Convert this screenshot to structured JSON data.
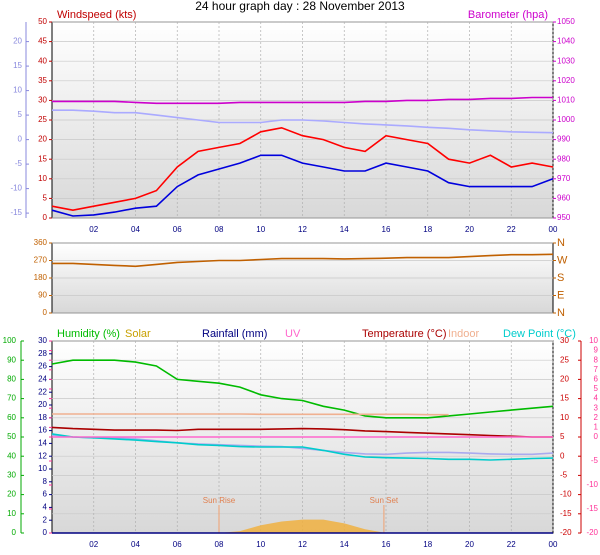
{
  "title": "24 hour graph day : 28 November 2013",
  "chart_data": [
    {
      "type": "line",
      "y_label": "Windspeed (kts)",
      "y2_label": "Barometer (hpa)",
      "x": [
        0,
        1,
        2,
        3,
        4,
        5,
        6,
        7,
        8,
        9,
        10,
        11,
        12,
        13,
        14,
        15,
        16,
        17,
        18,
        19,
        20,
        21,
        22,
        23,
        24
      ],
      "xlim": [
        0,
        24
      ],
      "xticks": [
        {
          "value": 2,
          "label": "02"
        },
        {
          "value": 4,
          "label": "04"
        },
        {
          "value": 6,
          "label": "06"
        },
        {
          "value": 8,
          "label": "08"
        },
        10,
        12,
        14,
        16,
        18,
        20,
        22,
        {
          "value": 24,
          "label": "00"
        }
      ],
      "ylim": [
        0,
        50
      ],
      "yticks": [
        0,
        5,
        10,
        15,
        20,
        25,
        30,
        35,
        40,
        45,
        50
      ],
      "y2lim": [
        950,
        1050
      ],
      "y2ticks": [
        950,
        960,
        970,
        980,
        990,
        1000,
        1010,
        1020,
        1030,
        1040,
        1050
      ],
      "y3lim": [
        -16,
        24
      ],
      "y3ticks": [
        -15,
        -10,
        -5,
        0,
        5,
        10,
        15,
        20
      ],
      "grid": true,
      "series": [
        {
          "color": "#aaaaff",
          "axis": "y3",
          "values": [
            6,
            6,
            5.8,
            5.5,
            5.5,
            5,
            4.5,
            4,
            3.5,
            3.5,
            3.5,
            4,
            4,
            3.8,
            3.5,
            3.2,
            3,
            2.8,
            2.5,
            2.3,
            2,
            1.8,
            1.6,
            1.5,
            1.4
          ]
        },
        {
          "color": "#cc00cc",
          "axis": "y2",
          "values": [
            1009.5,
            1009.5,
            1009.5,
            1009.5,
            1009,
            1008.5,
            1008.5,
            1008.5,
            1008.5,
            1009,
            1009,
            1009,
            1009,
            1009,
            1009,
            1009.5,
            1009.5,
            1010,
            1010,
            1010.5,
            1010.5,
            1011,
            1011,
            1011.5,
            1011.5
          ]
        },
        {
          "color": "#ff0000",
          "axis": "y",
          "values": [
            3,
            2,
            3,
            4,
            5,
            7,
            13,
            17,
            18,
            19,
            22,
            23,
            21,
            20,
            18,
            17,
            21,
            20,
            19,
            15,
            14,
            16,
            13,
            14,
            13
          ]
        },
        {
          "color": "#0000dd",
          "axis": "y",
          "values": [
            2,
            0.5,
            0.8,
            1.5,
            2.5,
            3,
            8,
            11,
            12.5,
            14,
            16,
            16,
            14,
            13,
            12,
            12,
            14,
            13,
            12,
            9,
            8,
            8,
            8,
            8,
            10
          ]
        }
      ]
    },
    {
      "type": "line",
      "x": [
        0,
        1,
        2,
        3,
        4,
        5,
        6,
        7,
        8,
        9,
        10,
        11,
        12,
        13,
        14,
        15,
        16,
        17,
        18,
        19,
        20,
        21,
        22,
        23,
        24
      ],
      "xlim": [
        0,
        24
      ],
      "ylim": [
        0,
        360
      ],
      "yticks": [
        0,
        90,
        180,
        270,
        360
      ],
      "y2lim": [
        0,
        360
      ],
      "y2ticks": [
        {
          "value": 360,
          "label": "N"
        },
        {
          "value": 270,
          "label": "W"
        },
        {
          "value": 180,
          "label": "S"
        },
        {
          "value": 90,
          "label": "E"
        },
        {
          "value": 0,
          "label": "N"
        }
      ],
      "grid": true,
      "series": [
        {
          "color": "#c06000",
          "axis": "y",
          "values": [
            255,
            255,
            250,
            245,
            240,
            250,
            260,
            265,
            270,
            270,
            275,
            280,
            280,
            280,
            278,
            280,
            282,
            285,
            285,
            285,
            290,
            295,
            300,
            300,
            302
          ]
        }
      ]
    },
    {
      "type": "line",
      "x": [
        0,
        1,
        2,
        3,
        4,
        5,
        6,
        7,
        8,
        9,
        10,
        11,
        12,
        13,
        14,
        15,
        16,
        17,
        18,
        19,
        20,
        21,
        22,
        23,
        24
      ],
      "xlim": [
        0,
        24
      ],
      "xticks": [
        {
          "value": 2,
          "label": "02"
        },
        {
          "value": 4,
          "label": "04"
        },
        {
          "value": 6,
          "label": "06"
        },
        {
          "value": 8,
          "label": "08"
        },
        10,
        12,
        14,
        16,
        18,
        20,
        22,
        {
          "value": 24,
          "label": "00"
        }
      ],
      "ylim": [
        0,
        100
      ],
      "yticks": [
        0,
        10,
        20,
        30,
        40,
        50,
        60,
        70,
        80,
        90,
        100
      ],
      "y2lim": [
        -20,
        30
      ],
      "y2ticks": [
        -20,
        -15,
        -10,
        -5,
        0,
        5,
        10,
        15,
        20,
        25,
        30
      ],
      "y3lim": [
        0,
        30
      ],
      "y3ticks": [
        0,
        2,
        4,
        6,
        8,
        10,
        12,
        14,
        16,
        18,
        20,
        22,
        24,
        26,
        28,
        30
      ],
      "y4lim": [
        -20,
        10
      ],
      "y4ticks": [
        -20,
        -15,
        -10,
        -5,
        0,
        1,
        2,
        3,
        4,
        5,
        6,
        7,
        8,
        9,
        10
      ],
      "grid": true,
      "annotations": [
        {
          "text": "Sun Rise",
          "x": 8
        },
        {
          "text": "Sun Set",
          "x": 15.9
        }
      ],
      "series": [
        {
          "name": "Solar",
          "color": "#f0b040",
          "axis": "y",
          "area": true,
          "values": [
            0,
            0,
            0,
            0,
            0,
            0,
            0,
            0,
            0,
            1,
            4,
            6,
            7,
            7,
            5,
            2,
            0,
            0,
            0,
            0,
            0,
            0,
            0,
            0,
            0
          ]
        },
        {
          "name": "Humidity (%)",
          "color": "#00bb00",
          "axis": "y",
          "values": [
            88,
            90,
            90,
            90,
            89,
            87,
            80,
            79,
            78,
            76,
            72,
            70,
            69,
            66,
            64,
            61,
            60,
            60,
            60,
            61,
            62,
            63,
            64,
            65,
            66
          ]
        },
        {
          "name": "Indoor",
          "color": "#f0b090",
          "axis": "y2",
          "values": [
            11,
            11,
            11,
            11,
            11,
            11,
            11,
            11,
            11,
            11,
            10.9,
            10.9,
            10.9,
            10.9,
            10.9,
            10.9,
            10.9,
            10.9,
            10.8,
            10.8,
            null,
            null,
            null,
            null,
            null
          ]
        },
        {
          "name": "Temperature (°C)",
          "color": "#aa0000",
          "axis": "y2",
          "values": [
            7.5,
            7.2,
            7,
            6.8,
            6.8,
            6.8,
            6.7,
            7,
            7,
            7,
            7,
            7.1,
            7.2,
            7.1,
            6.9,
            6.6,
            6.4,
            6.2,
            6,
            5.8,
            5.6,
            5.4,
            5.2,
            5,
            5
          ]
        },
        {
          "color": "#aaaaee",
          "axis": "y2",
          "values": [
            5.5,
            5,
            4.8,
            4.8,
            4.5,
            4,
            3.5,
            3.2,
            3,
            2.8,
            2.6,
            2.5,
            2,
            1.5,
            1,
            0.6,
            0.5,
            0.8,
            1,
            1,
            0.8,
            0.6,
            0.5,
            0.5,
            0.8
          ]
        },
        {
          "name": "Dew Point (°C)",
          "color": "#00cccc",
          "axis": "y2",
          "values": [
            5.8,
            5,
            4.8,
            4.5,
            4.2,
            3.8,
            3.5,
            3,
            2.8,
            2.5,
            2.4,
            2.4,
            2.4,
            1.5,
            0.5,
            -0.2,
            -0.4,
            -0.5,
            -0.6,
            -0.8,
            -0.8,
            -1,
            -0.8,
            -0.6,
            -0.5
          ]
        },
        {
          "name": "Rainfall (mm)",
          "color": "#000080",
          "axis": "y3",
          "values": [
            0,
            0,
            0,
            0,
            0,
            0,
            0,
            0,
            0,
            0,
            0,
            0,
            0,
            0,
            0,
            0,
            0,
            0,
            0,
            0,
            0,
            0,
            0,
            0,
            0
          ]
        },
        {
          "name": "UV",
          "color": "#ff66cc",
          "axis": "y4",
          "values": [
            0,
            0,
            0,
            0,
            0,
            0,
            0,
            0,
            0,
            0,
            0,
            0,
            0,
            0,
            0,
            0,
            0,
            0,
            0,
            0,
            0,
            0,
            0,
            0,
            0
          ]
        }
      ]
    }
  ]
}
